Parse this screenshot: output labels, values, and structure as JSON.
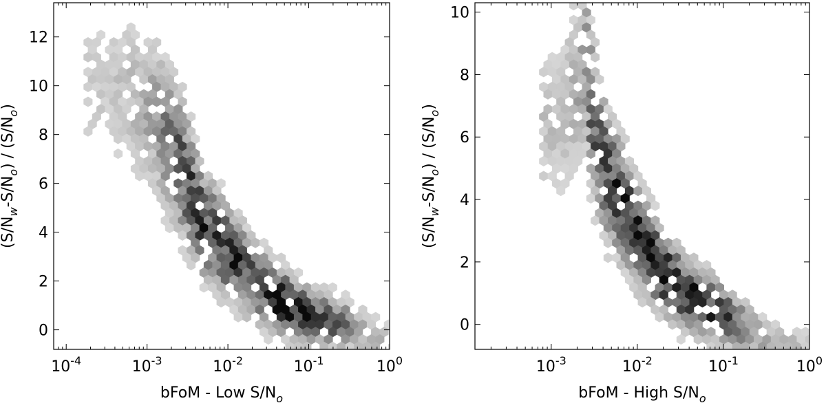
{
  "chart_data": [
    {
      "type": "heatmap",
      "subtype": "hexbin",
      "xlabel": {
        "main": "bFoM - Low S/N",
        "sub": "o"
      },
      "ylabel": {
        "parts": [
          [
            "(S/N",
            ""
          ],
          [
            "w",
            "sub"
          ],
          [
            "-S/N",
            ""
          ],
          [
            "o",
            "sub"
          ],
          [
            ") / (S/N",
            ""
          ],
          [
            "o",
            "sub"
          ],
          [
            ")",
            ""
          ]
        ]
      },
      "xscale": "log",
      "xlim": [
        7e-05,
        1.0
      ],
      "ylim": [
        -0.8,
        13.4
      ],
      "xticks": [
        {
          "value": 0.0001,
          "base": "10",
          "exp": "-4"
        },
        {
          "value": 0.001,
          "base": "10",
          "exp": "-3"
        },
        {
          "value": 0.01,
          "base": "10",
          "exp": "-2"
        },
        {
          "value": 0.1,
          "base": "10",
          "exp": "-1"
        },
        {
          "value": 1,
          "base": "10",
          "exp": "0"
        }
      ],
      "yticks": [
        0,
        2,
        4,
        6,
        8,
        10,
        12
      ],
      "grid": false,
      "colormap": "greys",
      "density_trend": [
        {
          "x": 0.0003,
          "y": 10.0,
          "density": 0.15
        },
        {
          "x": 0.0006,
          "y": 9.7,
          "density": 0.2
        },
        {
          "x": 0.0012,
          "y": 8.8,
          "density": 0.35
        },
        {
          "x": 0.002,
          "y": 7.6,
          "density": 0.55
        },
        {
          "x": 0.0028,
          "y": 6.5,
          "density": 0.75
        },
        {
          "x": 0.005,
          "y": 4.3,
          "density": 0.8
        },
        {
          "x": 0.012,
          "y": 2.9,
          "density": 0.85
        },
        {
          "x": 0.025,
          "y": 1.8,
          "density": 0.8
        },
        {
          "x": 0.055,
          "y": 1.0,
          "density": 1.0
        },
        {
          "x": 0.1,
          "y": 0.5,
          "density": 0.95
        },
        {
          "x": 0.3,
          "y": 0.2,
          "density": 0.5
        },
        {
          "x": 0.8,
          "y": -0.4,
          "density": 0.2
        }
      ]
    },
    {
      "type": "heatmap",
      "subtype": "hexbin",
      "xlabel": {
        "main": "bFoM - High S/N",
        "sub": "o"
      },
      "ylabel": {
        "parts": [
          [
            "(S/N",
            ""
          ],
          [
            "w",
            "sub"
          ],
          [
            "-S/N",
            ""
          ],
          [
            "o",
            "sub"
          ],
          [
            ") / (S/N",
            ""
          ],
          [
            "o",
            "sub"
          ],
          [
            ")",
            ""
          ]
        ]
      },
      "xscale": "log",
      "xlim": [
        0.00013,
        1.0
      ],
      "ylim": [
        -0.8,
        10.3
      ],
      "xticks": [
        {
          "value": 0.001,
          "base": "10",
          "exp": "-3"
        },
        {
          "value": 0.01,
          "base": "10",
          "exp": "-2"
        },
        {
          "value": 0.1,
          "base": "10",
          "exp": "-1"
        },
        {
          "value": 1,
          "base": "10",
          "exp": "0"
        }
      ],
      "yticks": [
        0,
        2,
        4,
        6,
        8,
        10
      ],
      "grid": false,
      "colormap": "greys",
      "density_trend": [
        {
          "x": 0.0013,
          "y": 6.5,
          "density": 0.2
        },
        {
          "x": 0.0025,
          "y": 8.5,
          "density": 0.4
        },
        {
          "x": 0.003,
          "y": 6.5,
          "density": 0.65
        },
        {
          "x": 0.0045,
          "y": 4.7,
          "density": 0.8
        },
        {
          "x": 0.007,
          "y": 3.8,
          "density": 0.8
        },
        {
          "x": 0.01,
          "y": 2.9,
          "density": 0.9
        },
        {
          "x": 0.018,
          "y": 1.8,
          "density": 0.95
        },
        {
          "x": 0.035,
          "y": 1.0,
          "density": 1.0
        },
        {
          "x": 0.09,
          "y": 0.4,
          "density": 0.85
        },
        {
          "x": 0.3,
          "y": -0.5,
          "density": 0.35
        },
        {
          "x": 0.8,
          "y": -0.7,
          "density": 0.2
        }
      ]
    }
  ]
}
